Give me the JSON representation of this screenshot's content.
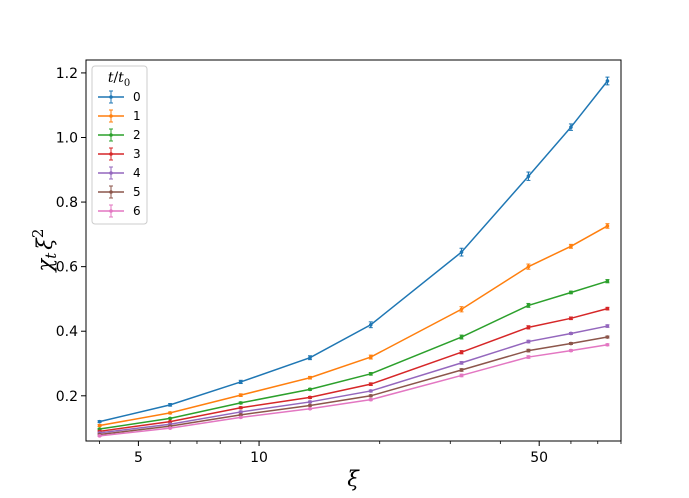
{
  "chart_data": {
    "type": "line",
    "xscale": "log",
    "xlabel": "ξ",
    "ylabel": "χ_t ξ^2",
    "ylabel_parts": {
      "base": "χ",
      "base_sub": "t",
      "var": "ξ",
      "var_sup": "2"
    },
    "xlim": [
      3.7,
      80
    ],
    "ylim": [
      0.06,
      1.24
    ],
    "xticks": [
      5,
      10,
      50
    ],
    "xtick_labels": [
      "5",
      "10",
      "50"
    ],
    "yticks": [
      0.2,
      0.4,
      0.6,
      0.8,
      1.0,
      1.2
    ],
    "ytick_labels": [
      "0.2",
      "0.4",
      "0.6",
      "0.8",
      "1.0",
      "1.2"
    ],
    "grid": false,
    "legend": {
      "title": "t/t_0",
      "title_parts": {
        "num": "t",
        "den": "t",
        "den_sub": "0"
      },
      "placement": "upper-left"
    },
    "x": [
      4.0,
      6.0,
      9.0,
      13.4,
      19.0,
      32.0,
      47.0,
      60.0,
      74.0
    ],
    "series": [
      {
        "name": "0",
        "color": "#1f77b4",
        "values": [
          0.12,
          0.172,
          0.243,
          0.318,
          0.42,
          0.645,
          0.88,
          1.032,
          1.175
        ],
        "errors": [
          0.003,
          0.004,
          0.005,
          0.006,
          0.009,
          0.012,
          0.013,
          0.01,
          0.012
        ]
      },
      {
        "name": "1",
        "color": "#ff7f0e",
        "values": [
          0.108,
          0.147,
          0.202,
          0.256,
          0.32,
          0.468,
          0.6,
          0.663,
          0.726
        ],
        "errors": [
          0.003,
          0.003,
          0.004,
          0.004,
          0.006,
          0.008,
          0.008,
          0.006,
          0.007
        ]
      },
      {
        "name": "2",
        "color": "#2ca02c",
        "values": [
          0.097,
          0.13,
          0.178,
          0.22,
          0.268,
          0.382,
          0.48,
          0.52,
          0.555
        ],
        "errors": [
          0.002,
          0.002,
          0.003,
          0.003,
          0.004,
          0.006,
          0.006,
          0.004,
          0.005
        ]
      },
      {
        "name": "3",
        "color": "#d62728",
        "values": [
          0.09,
          0.12,
          0.163,
          0.195,
          0.236,
          0.335,
          0.412,
          0.44,
          0.47
        ],
        "errors": [
          0.002,
          0.002,
          0.003,
          0.003,
          0.004,
          0.005,
          0.005,
          0.004,
          0.004
        ]
      },
      {
        "name": "4",
        "color": "#9467bd",
        "values": [
          0.085,
          0.112,
          0.15,
          0.181,
          0.215,
          0.302,
          0.368,
          0.393,
          0.416
        ],
        "errors": [
          0.002,
          0.002,
          0.003,
          0.003,
          0.003,
          0.004,
          0.004,
          0.003,
          0.004
        ]
      },
      {
        "name": "5",
        "color": "#8c564b",
        "values": [
          0.08,
          0.106,
          0.141,
          0.17,
          0.2,
          0.28,
          0.34,
          0.362,
          0.382
        ],
        "errors": [
          0.002,
          0.002,
          0.002,
          0.002,
          0.003,
          0.004,
          0.004,
          0.003,
          0.003
        ]
      },
      {
        "name": "6",
        "color": "#e377c2",
        "values": [
          0.076,
          0.1,
          0.133,
          0.16,
          0.188,
          0.263,
          0.32,
          0.34,
          0.358
        ],
        "errors": [
          0.002,
          0.002,
          0.002,
          0.002,
          0.003,
          0.004,
          0.004,
          0.003,
          0.003
        ]
      }
    ]
  }
}
